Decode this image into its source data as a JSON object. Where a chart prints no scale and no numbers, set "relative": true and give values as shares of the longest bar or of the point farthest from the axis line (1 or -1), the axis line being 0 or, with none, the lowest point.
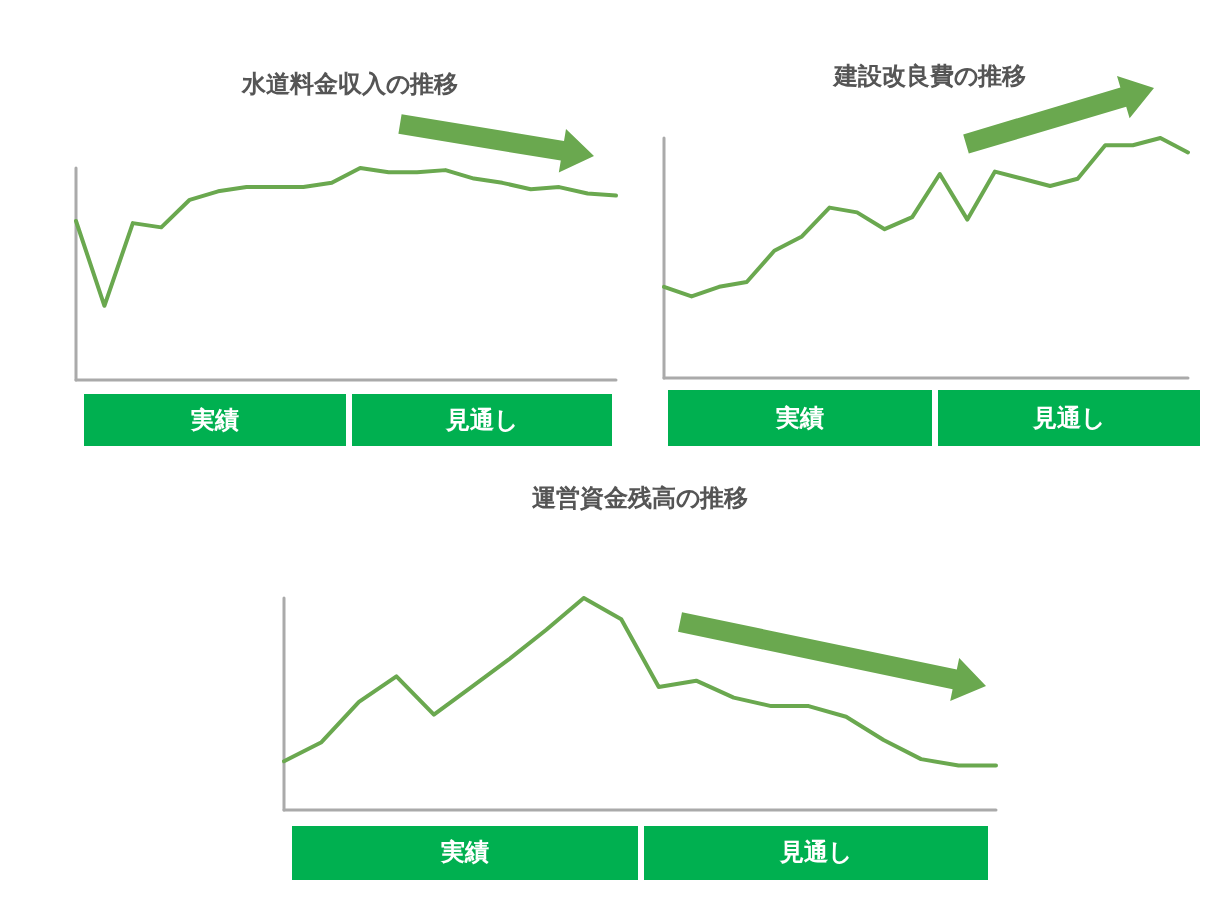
{
  "chart_data": [
    {
      "type": "line",
      "title": "水道料金収入の推移",
      "relative": true,
      "color": "#6aa84f",
      "marker": "none",
      "grid": false,
      "categories": [
        null,
        null,
        null,
        null,
        null,
        null,
        null,
        null,
        null,
        null,
        null,
        null,
        null,
        null,
        null,
        null,
        null,
        null,
        null,
        null
      ],
      "values": [
        0.75,
        0.35,
        0.74,
        0.72,
        0.85,
        0.89,
        0.91,
        0.91,
        0.91,
        0.93,
        1,
        0.98,
        0.98,
        0.99,
        0.95,
        0.93,
        0.9,
        0.91,
        0.88,
        0.87
      ],
      "annotations": [
        "実績",
        "見通し"
      ]
    },
    {
      "type": "line",
      "title": "建設改良費の推移",
      "relative": true,
      "color": "#6aa84f",
      "marker": "none",
      "grid": false,
      "categories": [
        null,
        null,
        null,
        null,
        null,
        null,
        null,
        null,
        null,
        null,
        null,
        null,
        null,
        null,
        null,
        null,
        null,
        null,
        null,
        null
      ],
      "values": [
        0.38,
        0.34,
        0.38,
        0.4,
        0.53,
        0.59,
        0.71,
        0.69,
        0.62,
        0.67,
        0.85,
        0.66,
        0.86,
        0.83,
        0.8,
        0.83,
        0.97,
        0.97,
        1,
        0.94
      ],
      "annotations": [
        "実績",
        "見通し"
      ]
    },
    {
      "type": "line",
      "title": "運営資金残高の推移",
      "relative": true,
      "color": "#6aa84f",
      "marker": "none",
      "grid": false,
      "categories": [
        null,
        null,
        null,
        null,
        null,
        null,
        null,
        null,
        null,
        null,
        null,
        null,
        null,
        null,
        null,
        null,
        null,
        null,
        null,
        null
      ],
      "values": [
        0.23,
        0.32,
        0.51,
        0.63,
        0.45,
        0.58,
        0.71,
        0.85,
        1,
        0.9,
        0.58,
        0.61,
        0.53,
        0.49,
        0.49,
        0.44,
        0.33,
        0.24,
        0.21,
        0.21
      ],
      "annotations": [
        "実績",
        "見通し"
      ]
    }
  ]
}
